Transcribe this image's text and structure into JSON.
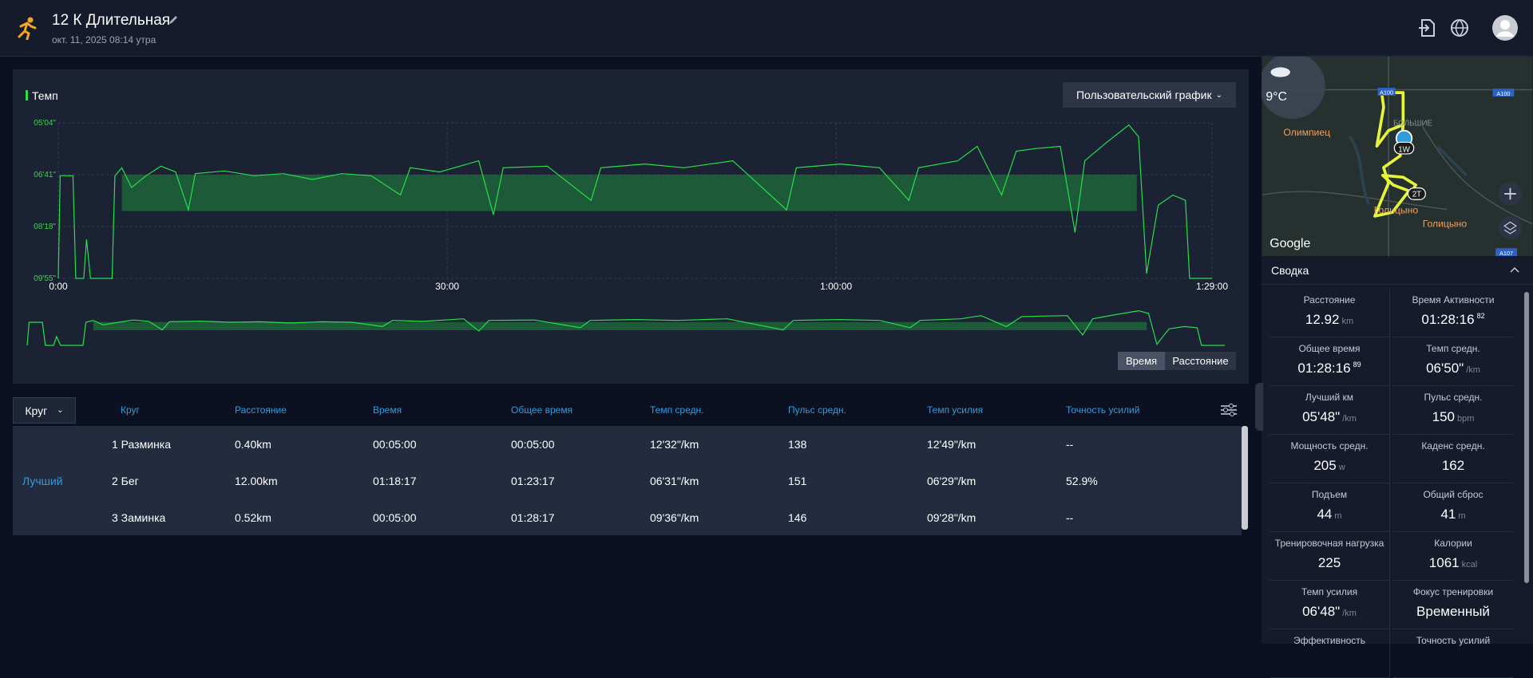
{
  "header": {
    "title": "12 К Длительная",
    "date": "окт. 11, 2025 08:14 утра"
  },
  "chart_data": {
    "type": "line",
    "label": "Темп",
    "color": "#27e04a",
    "x": [
      0,
      9,
      68,
      81,
      118,
      131,
      149,
      249,
      262,
      294,
      339,
      407,
      475,
      543,
      602,
      634,
      769,
      905,
      1041,
      1176,
      1312,
      1448,
      1584,
      1629,
      1765,
      1946,
      2014,
      2059,
      2263,
      2466,
      2511,
      2715,
      2896,
      3122,
      3371,
      3416,
      3620,
      3801,
      3937,
      3982,
      4163,
      4253,
      4366,
      4434,
      4525,
      4638,
      4706,
      4751,
      4842,
      4955,
      5000,
      5037,
      5091,
      5159,
      5217,
      5236,
      5340
    ],
    "values": [
      595,
      403,
      403,
      595,
      595,
      522,
      595,
      595,
      403,
      388,
      425,
      403,
      385,
      396,
      467,
      399,
      394,
      403,
      399,
      410,
      399,
      403,
      439,
      388,
      396,
      375,
      476,
      388,
      385,
      449,
      388,
      381,
      388,
      375,
      467,
      388,
      381,
      388,
      449,
      388,
      375,
      348,
      439,
      357,
      352,
      348,
      509,
      375,
      344,
      308,
      330,
      586,
      458,
      439,
      449,
      595,
      595
    ],
    "xlim": [
      0,
      5340
    ],
    "xticks": [
      {
        "value": 0,
        "label": "0:00"
      },
      {
        "value": 1800,
        "label": "30:00"
      },
      {
        "value": 3600,
        "label": "1:00:00"
      },
      {
        "value": 5340,
        "label": "1:29:00"
      }
    ],
    "ylim": [
      595,
      304
    ],
    "yticks": [
      {
        "value": 304,
        "label": "05'04\""
      },
      {
        "value": 401,
        "label": "06'41\""
      },
      {
        "value": 498,
        "label": "08'18\""
      },
      {
        "value": 595,
        "label": "09'55\""
      }
    ],
    "band_y": [
      401,
      469
    ],
    "band_x": [
      294,
      4992
    ],
    "band_color": "#1c5a38",
    "grid": true
  },
  "controls": {
    "custom_chart": "Пользовательский график",
    "toggle": [
      "Время",
      "Расстояние"
    ]
  },
  "laps": {
    "dropdown": "Круг",
    "headers": [
      "Круг",
      "Расстояние",
      "Время",
      "Общее время",
      "Темп средн.",
      "Пульс средн.",
      "Темп усилия",
      "Точность усилий"
    ],
    "best": "Лучший",
    "rows": [
      [
        "1 Разминка",
        "0.40km",
        "00:05:00",
        "00:05:00",
        "12'32\"/km",
        "138",
        "12'49\"/km",
        "--"
      ],
      [
        "2 Бег",
        "12.00km",
        "01:18:17",
        "01:23:17",
        "06'31\"/km",
        "151",
        "06'29\"/km",
        "52.9%"
      ],
      [
        "3 Заминка",
        "0.52km",
        "00:05:00",
        "01:28:17",
        "09'36\"/km",
        "146",
        "09'28\"/km",
        "--"
      ]
    ]
  },
  "map": {
    "temperature": "9°C",
    "places": [
      "Олимпиец",
      "Голицыно",
      "Голицыно",
      "БОЛЬШИЕ"
    ],
    "markers": [
      "1W",
      "2T"
    ],
    "roads": [
      "A100",
      "A100",
      "A107"
    ],
    "brand": "Google"
  },
  "summary": {
    "title": "Сводка",
    "items": [
      {
        "label": "Расстояние",
        "value": "12.92",
        "unit": "km"
      },
      {
        "label": "Время Активности",
        "value": "01:28:16",
        "sup": "82"
      },
      {
        "label": "Общее время",
        "value": "01:28:16",
        "sup": "89"
      },
      {
        "label": "Темп средн.",
        "value": "06'50\"",
        "unit": "/km"
      },
      {
        "label": "Лучший км",
        "value": "05'48\"",
        "unit": "/km"
      },
      {
        "label": "Пульс средн.",
        "value": "150",
        "unit": "bpm"
      },
      {
        "label": "Мощность средн.",
        "value": "205",
        "unit": "w"
      },
      {
        "label": "Каденс средн.",
        "value": "162"
      },
      {
        "label": "Подъем",
        "value": "44",
        "unit": "m"
      },
      {
        "label": "Общий сброс",
        "value": "41",
        "unit": "m"
      },
      {
        "label": "Тренировочная нагрузка",
        "value": "225"
      },
      {
        "label": "Калории",
        "value": "1061",
        "unit": "kcal"
      },
      {
        "label": "Темп усилия",
        "value": "06'48\"",
        "unit": "/km"
      },
      {
        "label": "Фокус тренировки",
        "value": "Временный"
      },
      {
        "label": "Эффективность"
      },
      {
        "label": "Точность усилий"
      }
    ]
  }
}
